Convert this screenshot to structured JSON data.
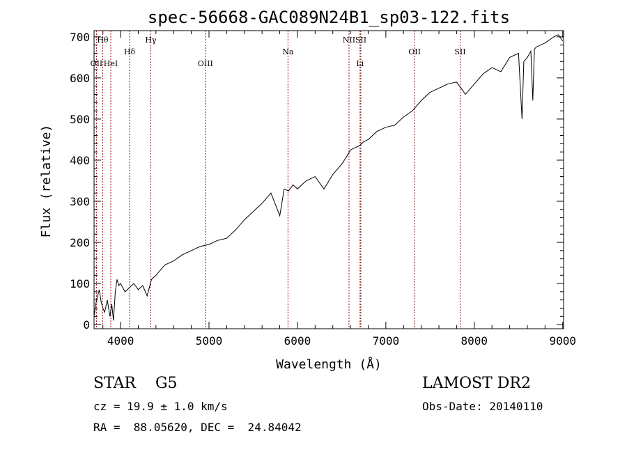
{
  "chart_data": {
    "type": "line",
    "title": "spec-56668-GAC089N24B1_sp03-122.fits",
    "xlabel": "Wavelength (Å)",
    "ylabel": "Flux (relative)",
    "xlim": [
      3700,
      9010
    ],
    "ylim": [
      -10,
      715
    ],
    "xticks": [
      4000,
      5000,
      6000,
      7000,
      8000,
      9000
    ],
    "yticks": [
      0,
      100,
      200,
      300,
      400,
      500,
      600,
      700
    ],
    "grid": false,
    "line_color": "#000000",
    "marker_color": "#8b1a1a",
    "series": [
      {
        "x": [
          3700,
          3720,
          3740,
          3760,
          3780,
          3800,
          3820,
          3850,
          3880,
          3900,
          3920,
          3940,
          3960,
          3980,
          4000,
          4050,
          4100,
          4150,
          4200,
          4250,
          4300,
          4350,
          4400,
          4500,
          4600,
          4700,
          4800,
          4900,
          5000,
          5100,
          5200,
          5300,
          5400,
          5500,
          5600,
          5700,
          5800,
          5850,
          5900,
          5950,
          6000,
          6100,
          6200,
          6300,
          6400,
          6500,
          6560,
          6600,
          6650,
          6700,
          6750,
          6800,
          6900,
          7000,
          7100,
          7200,
          7300,
          7400,
          7500,
          7600,
          7700,
          7800,
          7850,
          7900,
          8000,
          8100,
          8200,
          8300,
          8400,
          8500,
          8540,
          8560,
          8600,
          8640,
          8662,
          8680,
          8700,
          8800,
          8900,
          8950,
          9000
        ],
        "values": [
          20,
          50,
          70,
          85,
          55,
          40,
          30,
          60,
          20,
          50,
          10,
          80,
          110,
          95,
          100,
          80,
          90,
          100,
          85,
          95,
          70,
          110,
          120,
          145,
          155,
          170,
          180,
          190,
          195,
          205,
          210,
          230,
          255,
          275,
          295,
          320,
          265,
          330,
          325,
          340,
          330,
          350,
          360,
          330,
          365,
          390,
          410,
          425,
          430,
          435,
          445,
          450,
          470,
          480,
          485,
          505,
          520,
          545,
          565,
          575,
          585,
          590,
          575,
          560,
          585,
          610,
          625,
          615,
          650,
          660,
          500,
          640,
          650,
          665,
          545,
          670,
          675,
          685,
          700,
          705,
          690
        ]
      }
    ],
    "lines": [
      {
        "label": "Hθ",
        "x": 3798,
        "row": 1
      },
      {
        "label": "OII",
        "x": 3727,
        "row": 2
      },
      {
        "label": "HeI",
        "x": 3889,
        "row": 2
      },
      {
        "label": "Hδ",
        "x": 4102,
        "row": 1.5
      },
      {
        "label": "Hγ",
        "x": 4341,
        "row": 1
      },
      {
        "label": "OIII",
        "x": 4959,
        "row": 2
      },
      {
        "label": "Na",
        "x": 5893,
        "row": 1.5
      },
      {
        "label": "NII",
        "x": 6583,
        "row": 1
      },
      {
        "label": "SII",
        "x": 6717,
        "row": 1
      },
      {
        "label": "Li",
        "x": 6708,
        "row": 2
      },
      {
        "label": "OII",
        "x": 7325,
        "row": 1.5
      },
      {
        "label": "SII",
        "x": 7840,
        "row": 1.5
      }
    ]
  },
  "info": {
    "class": "STAR    G5",
    "survey": "LAMOST DR2",
    "cz": "cz = 19.9 ± 1.0 km/s",
    "obs_date": "Obs-Date: 20140110",
    "coords": "RA =  88.05620, DEC =  24.84042"
  }
}
